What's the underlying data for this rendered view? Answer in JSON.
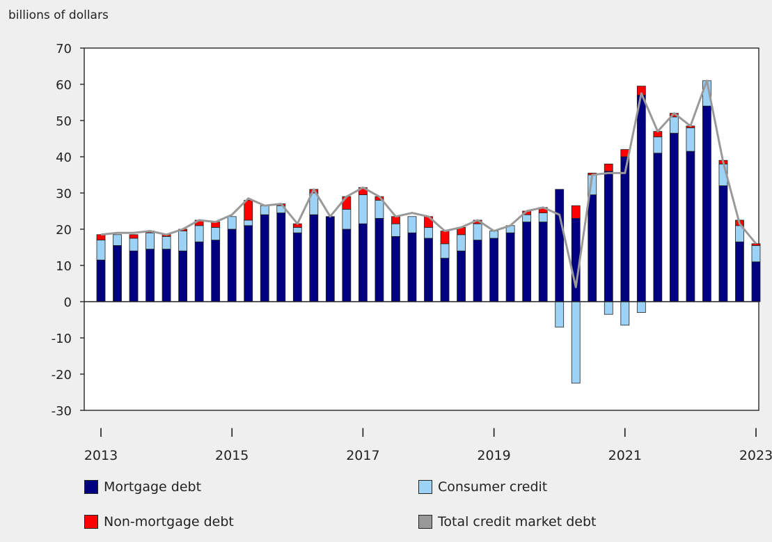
{
  "chart_data": {
    "type": "bar",
    "stacked": true,
    "ylabel": "billions of dollars",
    "ylim": [
      -30,
      70
    ],
    "yticks": [
      -30,
      -20,
      -10,
      0,
      10,
      20,
      30,
      40,
      50,
      60,
      70
    ],
    "grid": false,
    "x_tick_marks": [
      "I",
      "I",
      "I",
      "I",
      "I",
      "I"
    ],
    "x_tick_years": [
      "2013",
      "2015",
      "2017",
      "2019",
      "2021",
      "2023"
    ],
    "x_tick_quarter_index": [
      0,
      8,
      16,
      24,
      32,
      40
    ],
    "categories": [
      "2013-Q1",
      "2013-Q2",
      "2013-Q3",
      "2013-Q4",
      "2014-Q1",
      "2014-Q2",
      "2014-Q3",
      "2014-Q4",
      "2015-Q1",
      "2015-Q2",
      "2015-Q3",
      "2015-Q4",
      "2016-Q1",
      "2016-Q2",
      "2016-Q3",
      "2016-Q4",
      "2017-Q1",
      "2017-Q2",
      "2017-Q3",
      "2017-Q4",
      "2018-Q1",
      "2018-Q2",
      "2018-Q3",
      "2018-Q4",
      "2019-Q1",
      "2019-Q2",
      "2019-Q3",
      "2019-Q4",
      "2020-Q1",
      "2020-Q2",
      "2020-Q3",
      "2020-Q4",
      "2021-Q1",
      "2021-Q2",
      "2021-Q3",
      "2021-Q4",
      "2022-Q1",
      "2022-Q2",
      "2022-Q3",
      "2022-Q4",
      "2023-Q1"
    ],
    "series": [
      {
        "name": "Mortgage debt",
        "color": "#000080",
        "kind": "bar",
        "values": [
          11.5,
          15.5,
          14,
          14.5,
          14.5,
          14,
          16.5,
          17,
          20,
          21,
          24,
          24.5,
          19,
          24,
          23.5,
          20,
          21.5,
          23,
          18,
          19,
          17.5,
          12,
          14,
          17,
          17.5,
          19,
          22,
          22,
          31,
          23,
          29.5,
          36,
          40,
          57,
          41,
          46.5,
          41.5,
          54,
          32,
          16.5,
          11
        ]
      },
      {
        "name": "Consumer credit",
        "color": "#9dd2f7",
        "kind": "bar",
        "values": [
          5.5,
          3,
          3.5,
          4.5,
          3.5,
          5.5,
          4.5,
          3.5,
          3.5,
          1.5,
          2.5,
          2,
          1.5,
          6,
          0,
          5.5,
          8,
          5,
          3.5,
          4.5,
          3,
          4,
          4.5,
          4.5,
          2,
          2,
          2,
          2.5,
          -7,
          -22.5,
          5.5,
          -3.5,
          -6.5,
          -3,
          4.5,
          4.5,
          6.5,
          7,
          6,
          4.5,
          4.5
        ]
      },
      {
        "name": "Non-mortgage debt",
        "color": "#ff0000",
        "kind": "bar",
        "values": [
          1.5,
          0,
          1,
          0.5,
          0.5,
          0.5,
          1.5,
          1.5,
          0,
          5.5,
          0,
          0.5,
          1,
          1,
          0,
          3.5,
          2,
          1,
          2,
          0,
          3,
          3.5,
          2,
          1,
          0,
          0,
          1,
          1.5,
          0,
          3.5,
          0.5,
          2,
          2,
          2.5,
          1.5,
          1,
          0.5,
          0,
          1,
          1.5,
          0.5
        ]
      },
      {
        "name": "Total credit market debt",
        "color": "#999999",
        "kind": "line",
        "values": [
          18.5,
          19,
          19,
          19.5,
          18.5,
          20,
          22.5,
          22,
          24,
          28.5,
          26.5,
          27,
          21.5,
          31,
          23.5,
          29,
          31.5,
          29,
          23.5,
          24.5,
          23.5,
          19.5,
          20.5,
          22.5,
          19.5,
          21,
          25,
          26,
          24,
          4,
          35,
          35.5,
          35.5,
          57.5,
          47,
          52,
          48.5,
          61,
          38.5,
          21.5,
          16
        ]
      }
    ],
    "legend": {
      "placement": "bottom",
      "items": [
        "Mortgage debt",
        "Consumer credit",
        "Non-mortgage debt",
        "Total credit market debt"
      ]
    }
  }
}
